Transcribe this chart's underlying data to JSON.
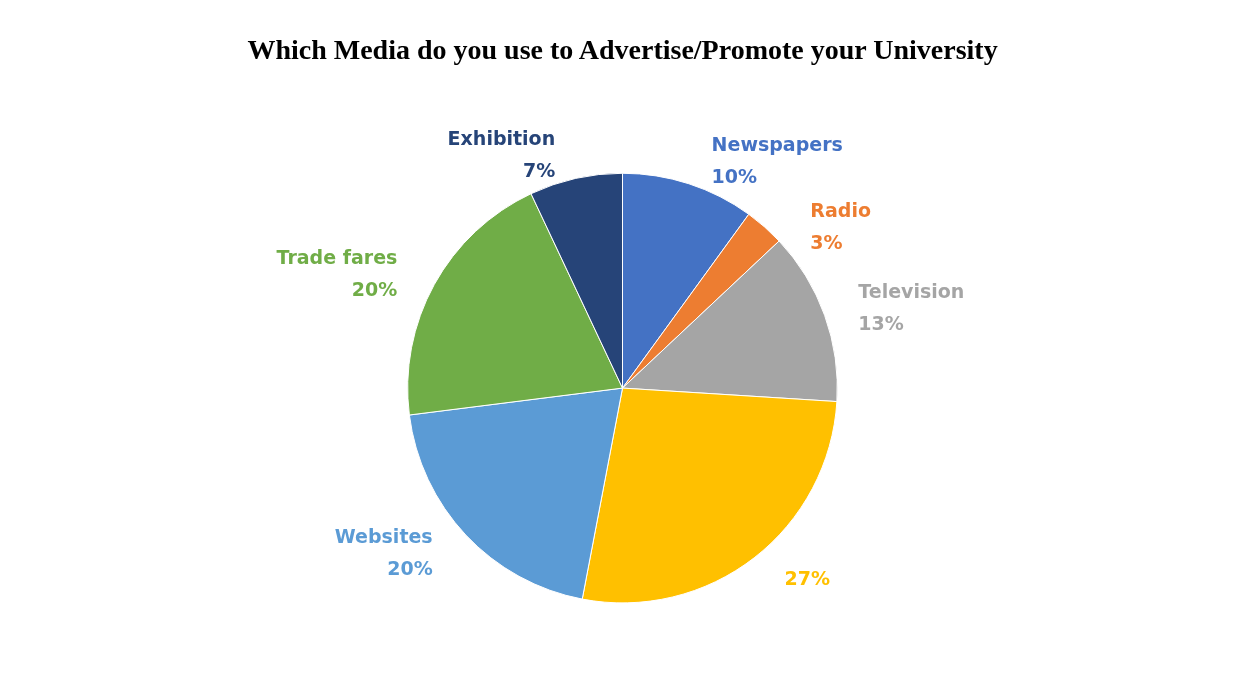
{
  "chart_data": {
    "type": "pie",
    "title": "Which Media do you use to Advertise/Promote your University",
    "categories": [
      "Newspapers",
      "Radio",
      "Television",
      null,
      "Websites",
      "Trade fares",
      "Exhibition"
    ],
    "values": [
      10,
      3,
      13,
      27,
      20,
      20,
      7
    ],
    "value_labels": [
      "10%",
      "3%",
      "13%",
      "27%",
      "20%",
      "20%",
      "7%"
    ],
    "colors": [
      "#4472c4",
      "#ed7d31",
      "#a5a5a5",
      "#ffc000",
      "#5b9bd5",
      "#70ad47",
      "#264478"
    ]
  }
}
